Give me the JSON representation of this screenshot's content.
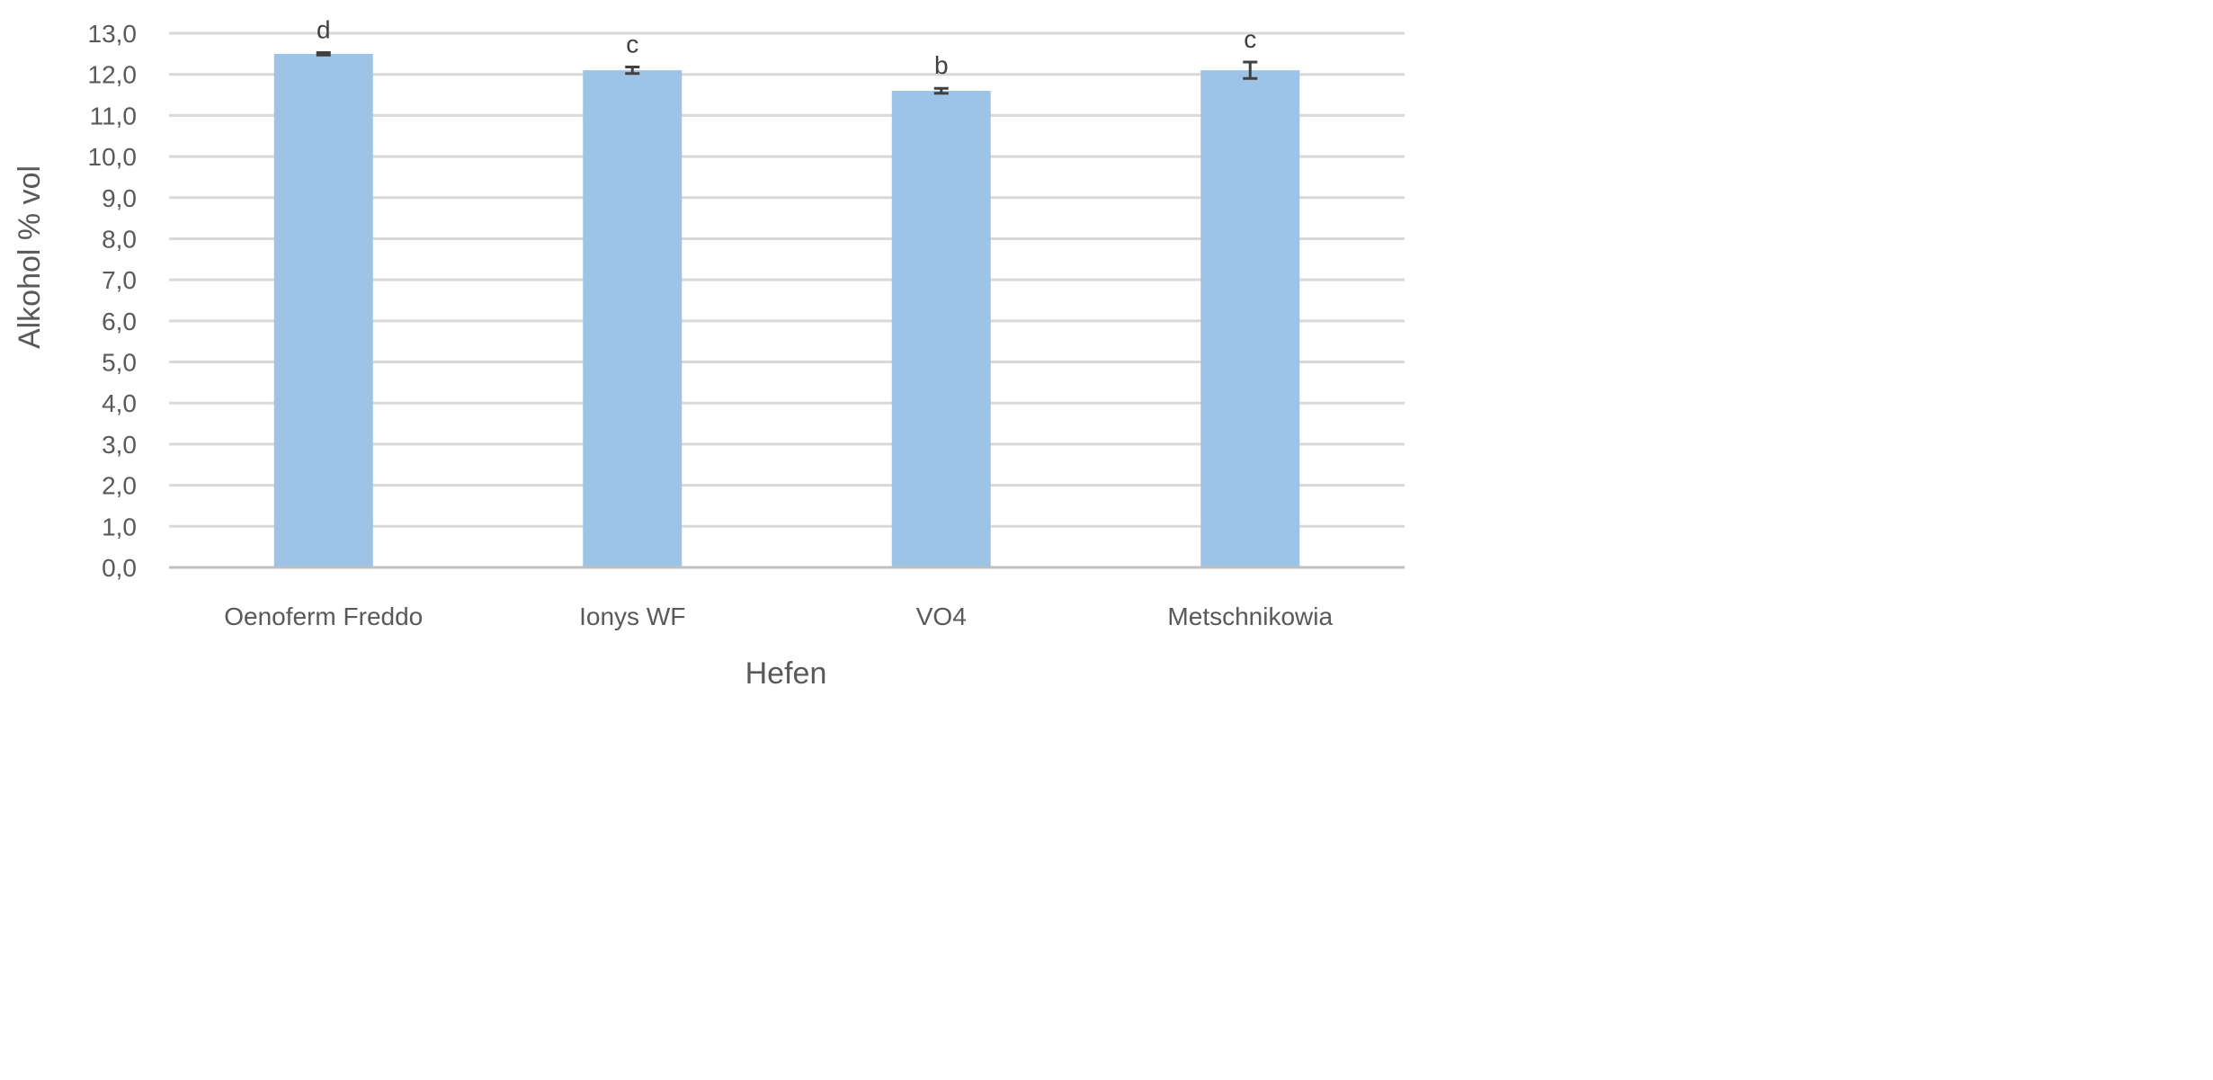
{
  "chart_data": {
    "type": "bar",
    "title": "",
    "xlabel": "Hefen",
    "ylabel": "Alkohol % vol",
    "categories": [
      "Oenoferm Freddo",
      "Ionys WF",
      "VO4",
      "Metschnikowia"
    ],
    "values": [
      12.5,
      12.1,
      11.6,
      12.1
    ],
    "error": [
      0.03,
      0.08,
      0.06,
      0.2
    ],
    "significance_letters": [
      "d",
      "c",
      "b",
      "c"
    ],
    "ylim": [
      0,
      13
    ],
    "y_tick_step": 1,
    "y_tick_labels": [
      "0,0",
      "1,0",
      "2,0",
      "3,0",
      "4,0",
      "5,0",
      "6,0",
      "7,0",
      "8,0",
      "9,0",
      "10,0",
      "11,0",
      "12,0",
      "13,0"
    ],
    "grid": true,
    "legend": "none",
    "colors": {
      "bar": "#9DC3E6",
      "grid": "#D9D9D9",
      "axis": "#BFBFBF",
      "error_bar": "#404040",
      "text": "#595959"
    }
  }
}
